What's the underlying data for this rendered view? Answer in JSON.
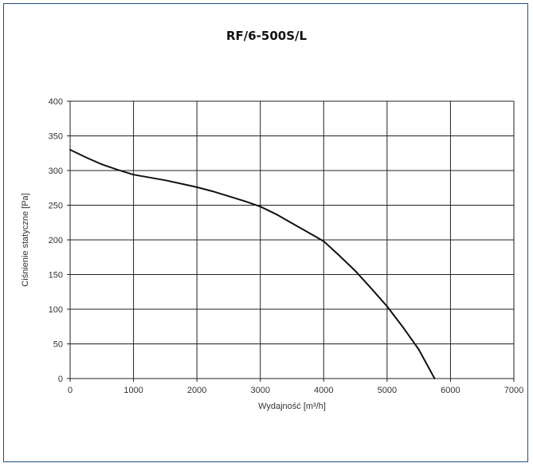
{
  "chart_data": {
    "type": "line",
    "title": "RF/6-500S/L",
    "xlabel": "Wydajność [m³/h]",
    "ylabel": "Ciśnienie statyczne [Pa]",
    "xlim": [
      0,
      7000
    ],
    "ylim": [
      0,
      400
    ],
    "xticks": [
      0,
      1000,
      2000,
      3000,
      4000,
      5000,
      6000,
      7000
    ],
    "yticks": [
      0,
      50,
      100,
      150,
      200,
      250,
      300,
      350,
      400
    ],
    "grid": true,
    "series": [
      {
        "x": [
          0,
          250,
          500,
          750,
          1000,
          1250,
          1500,
          1750,
          2000,
          2250,
          2500,
          2750,
          3000,
          3250,
          3500,
          3750,
          4000,
          4250,
          4500,
          4750,
          5000,
          5250,
          5500,
          5750
        ],
        "y": [
          330,
          319,
          309,
          301,
          294,
          290,
          286,
          281,
          276,
          270,
          263,
          256,
          248,
          237,
          224,
          211,
          198,
          177,
          155,
          130,
          104,
          74,
          42,
          0
        ],
        "color": "#111111"
      }
    ]
  }
}
